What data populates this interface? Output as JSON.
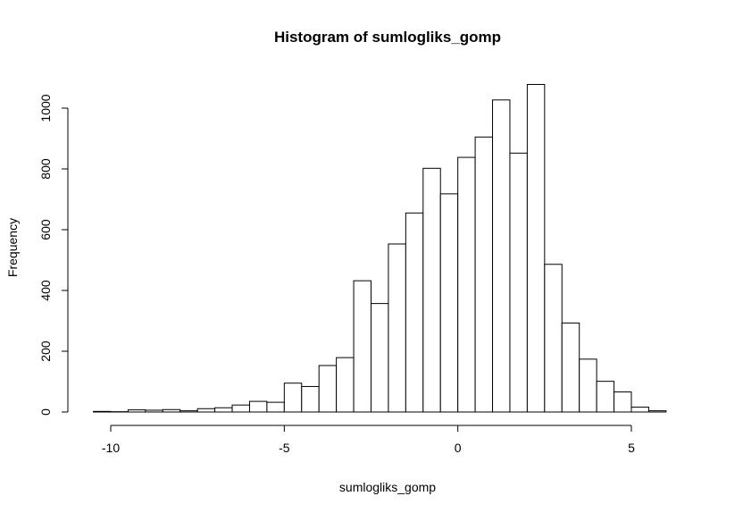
{
  "chart_data": {
    "type": "bar",
    "title": "Histogram of sumlogliks_gomp",
    "xlabel": "sumlogliks_gomp",
    "ylabel": "Frequency",
    "bin_width": 0.5,
    "bin_edges": [
      -10.5,
      -10,
      -9.5,
      -9,
      -8.5,
      -8,
      -7.5,
      -7,
      -6.5,
      -6,
      -5.5,
      -5,
      -4.5,
      -4,
      -3.5,
      -3,
      -2.5,
      -2,
      -1.5,
      -1,
      -0.5,
      0,
      0.5,
      1,
      1.5,
      2,
      2.5,
      3,
      3.5,
      4,
      4.5,
      5,
      5.5,
      6,
      6.5
    ],
    "values": [
      2,
      1,
      7,
      6,
      8,
      4,
      11,
      14,
      23,
      35,
      32,
      95,
      84,
      153,
      179,
      432,
      357,
      553,
      655,
      802,
      718,
      838,
      905,
      1027,
      852,
      1078,
      486,
      293,
      174,
      101,
      66,
      16,
      4,
      0
    ],
    "xlim": [
      -10.5,
      6.5
    ],
    "ylim": [
      0,
      1078
    ],
    "x_ticks": [
      -10,
      -5,
      0,
      5
    ],
    "x_tick_labels": [
      "-10",
      "-5",
      "0",
      "5"
    ],
    "y_ticks": [
      0,
      200,
      400,
      600,
      800,
      1000
    ],
    "y_tick_labels": [
      "0",
      "200",
      "400",
      "600",
      "800",
      "1000"
    ],
    "grid": false,
    "bar_fill": "#ffffff",
    "bar_stroke": "#000000"
  }
}
